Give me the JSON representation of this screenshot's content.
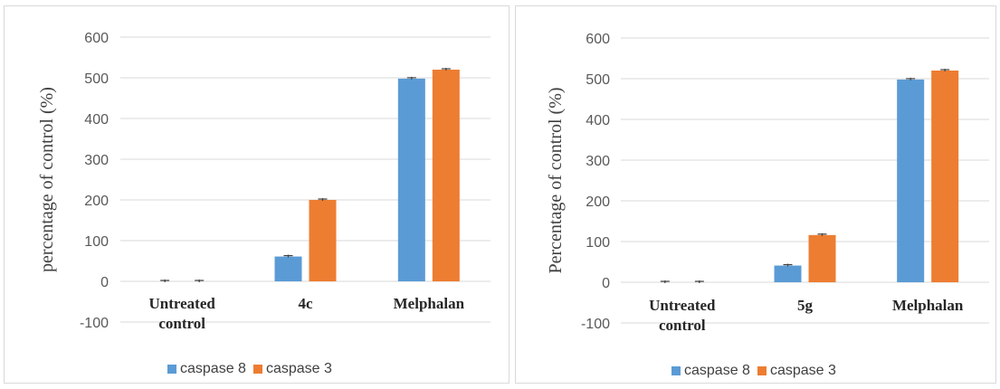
{
  "colors": {
    "caspase8": "#5b9bd5",
    "caspase3": "#ed7d31",
    "grid": "#d9d9d9",
    "error": "#404040"
  },
  "chart_data": [
    {
      "type": "bar",
      "ylabel": "percentage of control (%)",
      "ylim": [
        -100,
        600
      ],
      "yticks": [
        -100,
        0,
        100,
        200,
        300,
        400,
        500,
        600
      ],
      "categories": [
        [
          "Untreated",
          "control"
        ],
        [
          "4c"
        ],
        [
          "Melphalan"
        ]
      ],
      "series": [
        {
          "name": "caspase 8",
          "values": [
            0,
            61,
            498
          ]
        },
        {
          "name": "caspase 3",
          "values": [
            0,
            200,
            520
          ]
        }
      ],
      "legend": "bottom"
    },
    {
      "type": "bar",
      "ylabel": "Percentage of control (%)",
      "ylim": [
        -100,
        600
      ],
      "yticks": [
        -100,
        0,
        100,
        200,
        300,
        400,
        500,
        600
      ],
      "categories": [
        [
          "Untreated",
          "control"
        ],
        [
          "5g"
        ],
        [
          "Melphalan"
        ]
      ],
      "series": [
        {
          "name": "caspase 8",
          "values": [
            0,
            41,
            498
          ]
        },
        {
          "name": "caspase 3",
          "values": [
            0,
            116,
            520
          ]
        }
      ],
      "legend": "bottom"
    }
  ]
}
